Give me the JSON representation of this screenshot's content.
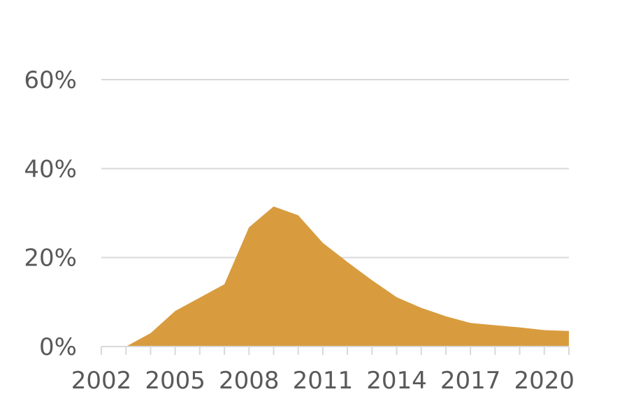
{
  "chart_data": {
    "type": "area",
    "title": "",
    "xlabel": "",
    "ylabel": "",
    "x": [
      2002,
      2003,
      2004,
      2005,
      2006,
      2007,
      2008,
      2009,
      2010,
      2011,
      2012,
      2013,
      2014,
      2015,
      2016,
      2017,
      2018,
      2019,
      2020,
      2021
    ],
    "series": [
      {
        "color": "#d89c3f",
        "values": [
          0.0,
          0.0,
          3.0,
          8.0,
          11.0,
          14.0,
          26.8,
          31.5,
          29.5,
          23.3,
          19.0,
          14.9,
          11.1,
          8.7,
          6.8,
          5.3,
          4.8,
          4.3,
          3.7,
          3.5
        ]
      }
    ],
    "xlim": [
      2002,
      2021
    ],
    "ylim": [
      0,
      60
    ],
    "yticks": [
      0,
      20,
      40,
      60
    ],
    "ytick_labels": [
      "0%",
      "20%",
      "40%",
      "60%"
    ],
    "xtick_labels": [
      "2002",
      "2005",
      "2008",
      "2011",
      "2014",
      "2017",
      "2020"
    ],
    "xtick_values": [
      2002,
      2005,
      2008,
      2011,
      2014,
      2017,
      2020
    ],
    "grid": true,
    "legend": "none",
    "colors": {
      "area": "#d89c3f",
      "grid": "#d9d9d9",
      "text": "#595959"
    }
  }
}
